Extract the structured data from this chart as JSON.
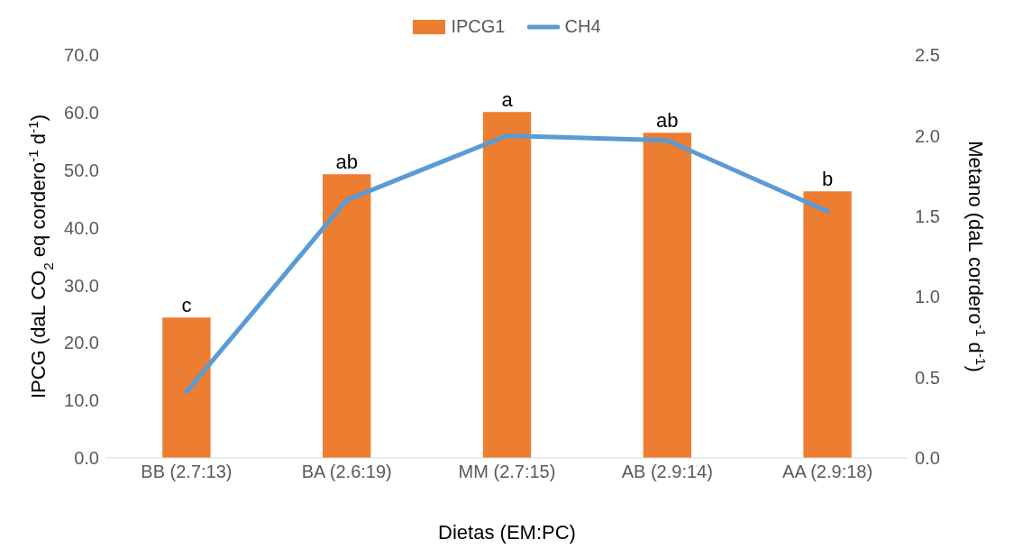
{
  "chart_data": {
    "type": "bar",
    "categories": [
      "BB (2.7:13)",
      "BA (2.6:19)",
      "MM (2.7:15)",
      "AB (2.9:14)",
      "AA (2.9:18)"
    ],
    "series": [
      {
        "name": "IPCG1",
        "color": "#ed7d31",
        "values": [
          24.4,
          49.3,
          60.1,
          56.5,
          46.3
        ]
      },
      {
        "name": "CH4",
        "type": "line",
        "axis": "y2",
        "color": "#5b9bd5",
        "values": [
          0.41,
          1.6,
          2.0,
          1.97,
          1.53
        ]
      }
    ],
    "xlabel": "Dietas (EM:PC)",
    "ylabel": "IPCG (daL CO$_{2}$ eq cordero$^{-1}$ d$^{-1}$)",
    "y2label": "Metano (daL cordero$^{-1}$ d$^{-1}$)",
    "ylim": [
      0,
      70
    ],
    "yticks": [
      {
        "value": 0,
        "label": "0.0"
      },
      {
        "value": 10,
        "label": "10.0"
      },
      {
        "value": 20,
        "label": "20.0"
      },
      {
        "value": 30,
        "label": "30.0"
      },
      {
        "value": 40,
        "label": "40.0"
      },
      {
        "value": 50,
        "label": "50.0"
      },
      {
        "value": 60,
        "label": "60.0"
      },
      {
        "value": 70,
        "label": "70.0"
      }
    ],
    "y2lim": [
      0,
      2.5
    ],
    "y2ticks": [
      {
        "value": 0,
        "label": "0.0"
      },
      {
        "value": 0.5,
        "label": "0.5"
      },
      {
        "value": 1,
        "label": "1.0"
      },
      {
        "value": 1.5,
        "label": "1.5"
      },
      {
        "value": 2,
        "label": "2.0"
      },
      {
        "value": 2.5,
        "label": "2.5"
      }
    ],
    "annotations": [
      {
        "text": "c",
        "x": "BB (2.7:13)",
        "y": 24.4
      },
      {
        "text": "ab",
        "x": "BA (2.6:19)",
        "y": 49.3
      },
      {
        "text": "a",
        "x": "MM (2.7:15)",
        "y": 60.1
      },
      {
        "text": "ab",
        "x": "AB (2.9:14)",
        "y": 56.5
      },
      {
        "text": "b",
        "x": "AA (2.9:18)",
        "y": 46.3
      }
    ],
    "legend": "top",
    "grid": false,
    "marker": "none",
    "line_style": "solid"
  }
}
